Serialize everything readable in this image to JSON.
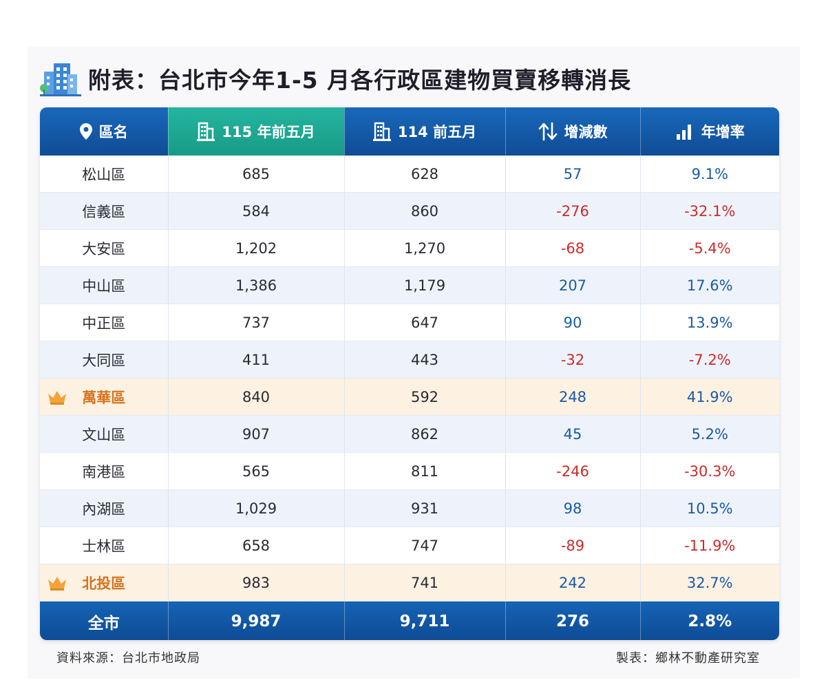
{
  "title": "附表：台北市今年1-5 月各行政區建物買賣移轉消長",
  "title_icon": "buildings-icon",
  "header": {
    "district": "區名",
    "y115": "115 年前五月",
    "y114": "114 前五月",
    "change": "增減數",
    "rate": "年增率"
  },
  "header_icons": [
    "location-pin-icon",
    "building-icon",
    "building-icon",
    "up-down-arrows-icon",
    "bar-chart-icon"
  ],
  "rows": [
    {
      "district": "松山區",
      "y115": "685",
      "y114": "628",
      "change": "57",
      "rate": "9.1%",
      "sign": "pos",
      "crown": false
    },
    {
      "district": "信義區",
      "y115": "584",
      "y114": "860",
      "change": "-276",
      "rate": "-32.1%",
      "sign": "neg",
      "crown": false
    },
    {
      "district": "大安區",
      "y115": "1,202",
      "y114": "1,270",
      "change": "-68",
      "rate": "-5.4%",
      "sign": "neg",
      "crown": false
    },
    {
      "district": "中山區",
      "y115": "1,386",
      "y114": "1,179",
      "change": "207",
      "rate": "17.6%",
      "sign": "pos",
      "crown": false
    },
    {
      "district": "中正區",
      "y115": "737",
      "y114": "647",
      "change": "90",
      "rate": "13.9%",
      "sign": "pos",
      "crown": false
    },
    {
      "district": "大同區",
      "y115": "411",
      "y114": "443",
      "change": "-32",
      "rate": "-7.2%",
      "sign": "neg",
      "crown": false
    },
    {
      "district": "萬華區",
      "y115": "840",
      "y114": "592",
      "change": "248",
      "rate": "41.9%",
      "sign": "pos",
      "crown": true
    },
    {
      "district": "文山區",
      "y115": "907",
      "y114": "862",
      "change": "45",
      "rate": "5.2%",
      "sign": "pos",
      "crown": false
    },
    {
      "district": "南港區",
      "y115": "565",
      "y114": "811",
      "change": "-246",
      "rate": "-30.3%",
      "sign": "neg",
      "crown": false
    },
    {
      "district": "內湖區",
      "y115": "1,029",
      "y114": "931",
      "change": "98",
      "rate": "10.5%",
      "sign": "pos",
      "crown": false
    },
    {
      "district": "士林區",
      "y115": "658",
      "y114": "747",
      "change": "-89",
      "rate": "-11.9%",
      "sign": "neg",
      "crown": false
    },
    {
      "district": "北投區",
      "y115": "983",
      "y114": "741",
      "change": "242",
      "rate": "32.7%",
      "sign": "pos",
      "crown": true
    }
  ],
  "total": {
    "district": "全市",
    "y115": "9,987",
    "y114": "9,711",
    "change": "276",
    "rate": "2.8%"
  },
  "source": "資料來源：台北市地政局",
  "maker": "製表：鄉林不動產研究室",
  "colors": {
    "header_blue": "#1565b8",
    "header_teal": "#1fab94",
    "positive": "#1a5aa6",
    "negative": "#cc2a2a",
    "highlight_row": "#fdf1e2",
    "highlight_text": "#d8731e"
  }
}
